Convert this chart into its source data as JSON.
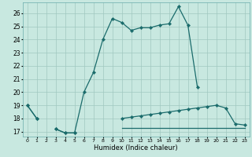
{
  "xlabel": "Humidex (Indice chaleur)",
  "background_color": "#c8e8e0",
  "grid_color": "#a0c8c0",
  "line_color": "#1a6b6b",
  "x_values": [
    0,
    1,
    2,
    3,
    4,
    5,
    6,
    7,
    8,
    9,
    10,
    11,
    12,
    13,
    14,
    15,
    16,
    17,
    18,
    19,
    20,
    21,
    22,
    23
  ],
  "main_y": [
    19.0,
    18.0,
    null,
    17.2,
    16.9,
    16.9,
    20.0,
    21.5,
    24.0,
    25.6,
    25.3,
    24.7,
    24.9,
    24.9,
    25.1,
    25.2,
    26.5,
    25.1,
    20.4,
    null,
    null,
    null,
    null,
    null
  ],
  "lower_y": [
    19.0,
    18.0,
    null,
    17.2,
    16.9,
    16.9,
    null,
    null,
    null,
    null,
    18.0,
    18.1,
    18.2,
    18.3,
    18.4,
    18.5,
    18.6,
    18.7,
    18.8,
    18.9,
    19.0,
    18.8,
    17.6,
    17.5
  ],
  "flat_y": [
    null,
    null,
    null,
    null,
    null,
    null,
    null,
    null,
    null,
    null,
    17.3,
    17.3,
    17.3,
    17.3,
    17.3,
    17.3,
    17.3,
    17.3,
    17.3,
    17.3,
    17.3,
    17.3,
    17.3,
    17.3
  ],
  "ylim": [
    16.6,
    26.8
  ],
  "yticks": [
    17,
    18,
    19,
    20,
    21,
    22,
    23,
    24,
    25,
    26
  ],
  "xlim": [
    -0.5,
    23.5
  ]
}
